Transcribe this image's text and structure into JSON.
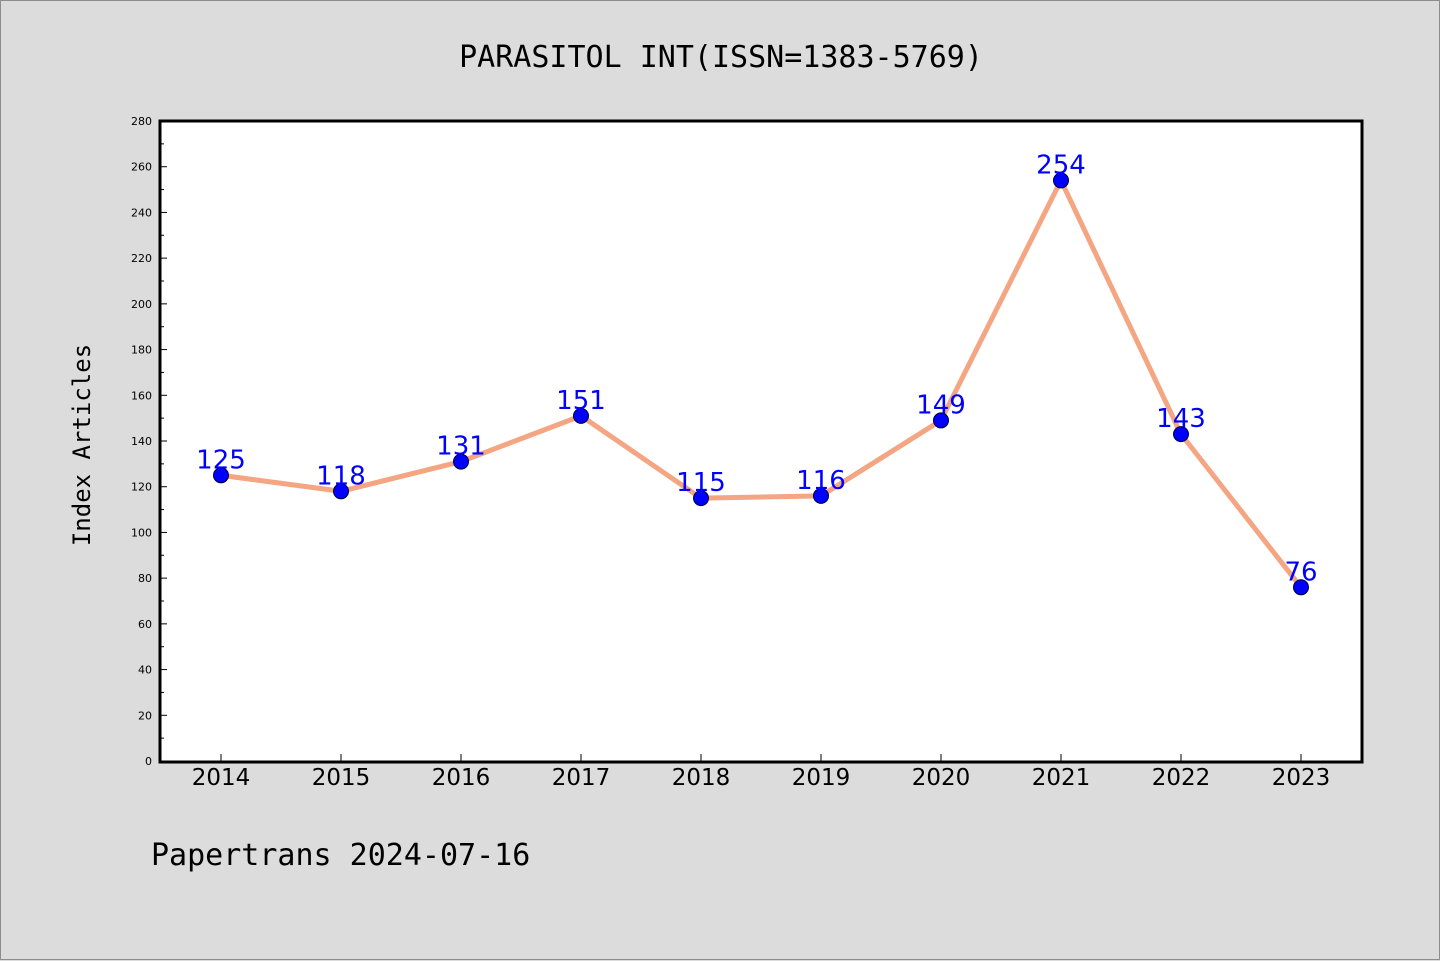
{
  "chart_data": {
    "type": "line",
    "title": "PARASITOL INT(ISSN=1383-5769)",
    "ylabel": "Index Articles",
    "xlabel": "",
    "categories": [
      "2014",
      "2015",
      "2016",
      "2017",
      "2018",
      "2019",
      "2020",
      "2021",
      "2022",
      "2023"
    ],
    "values": [
      125,
      118,
      131,
      151,
      115,
      116,
      149,
      254,
      143,
      76
    ],
    "ylim": [
      0,
      280
    ],
    "yticks": [
      0,
      20,
      40,
      60,
      80,
      100,
      120,
      140,
      160,
      180,
      200,
      220,
      240,
      260,
      280
    ],
    "grid": false,
    "colors": {
      "line": "#f4a582",
      "marker": "#0000ff",
      "data_label": "#0000ff",
      "plot_background": "#ffffff",
      "figure_background": "#dcdcdc"
    }
  },
  "footer": {
    "text": "Papertrans 2024-07-16"
  }
}
